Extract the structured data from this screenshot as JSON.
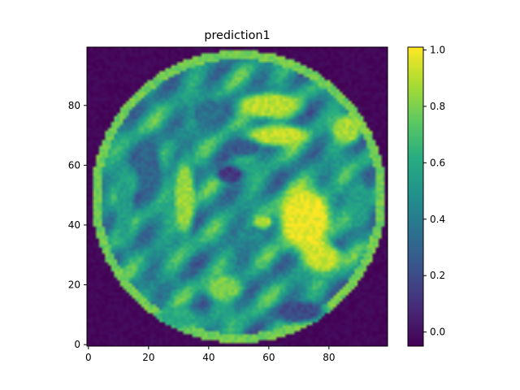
{
  "chart_data": {
    "type": "heatmap",
    "title": "prediction1",
    "xlabel": "",
    "ylabel": "",
    "xlim": [
      -0.5,
      99.5
    ],
    "ylim": [
      99.5,
      -0.5
    ],
    "x_ticks": [
      0,
      20,
      40,
      60,
      80
    ],
    "y_ticks": [
      0,
      20,
      40,
      60,
      80
    ],
    "grid": false,
    "colormap": "viridis",
    "colorbar": {
      "range": [
        -0.05,
        1.01
      ],
      "ticks": [
        0.0,
        0.2,
        0.4,
        0.6,
        0.8,
        1.0
      ],
      "tick_labels": [
        "0.0",
        "0.2",
        "0.4",
        "0.6",
        "0.8",
        "1.0"
      ]
    },
    "image": {
      "rows": 100,
      "cols": 100,
      "description_values": {
        "background": -0.03,
        "disc_center": [
          50,
          49.5
        ],
        "disc_radius": 49
      },
      "regions": [
        {
          "cx": 72,
          "cy": 57,
          "rx": 13,
          "ry": 16,
          "value": 0.98
        },
        {
          "cx": 78,
          "cy": 70,
          "rx": 9,
          "ry": 7,
          "value": 0.92
        },
        {
          "cx": 60,
          "cy": 19,
          "rx": 15,
          "ry": 6,
          "value": 0.9
        },
        {
          "cx": 63,
          "cy": 29,
          "rx": 14,
          "ry": 5,
          "value": 0.92
        },
        {
          "cx": 86,
          "cy": 27,
          "rx": 7,
          "ry": 7,
          "value": 0.88
        },
        {
          "cx": 47,
          "cy": 42,
          "rx": 6,
          "ry": 4,
          "value": 0.12
        },
        {
          "cx": 52,
          "cy": 33,
          "rx": 8,
          "ry": 4,
          "value": 0.25
        },
        {
          "cx": 32,
          "cy": 50,
          "rx": 5,
          "ry": 18,
          "value": 0.85
        },
        {
          "cx": 20,
          "cy": 40,
          "rx": 6,
          "ry": 14,
          "value": 0.3
        },
        {
          "cx": 12,
          "cy": 52,
          "rx": 4,
          "ry": 22,
          "value": 0.55
        },
        {
          "cx": 55,
          "cy": 62,
          "rx": 7,
          "ry": 4,
          "value": 0.45
        },
        {
          "cx": 58,
          "cy": 58,
          "rx": 4,
          "ry": 3,
          "value": 0.9
        },
        {
          "cx": 45,
          "cy": 80,
          "rx": 9,
          "ry": 6,
          "value": 0.8
        },
        {
          "cx": 70,
          "cy": 88,
          "rx": 12,
          "ry": 5,
          "value": 0.2
        },
        {
          "cx": 90,
          "cy": 52,
          "rx": 6,
          "ry": 12,
          "value": 0.55
        },
        {
          "cx": 40,
          "cy": 22,
          "rx": 8,
          "ry": 8,
          "value": 0.35
        },
        {
          "cx": 30,
          "cy": 90,
          "rx": 10,
          "ry": 5,
          "value": 0.6
        }
      ]
    }
  }
}
